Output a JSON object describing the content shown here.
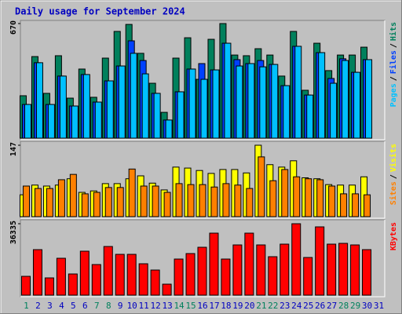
{
  "chart_data": [
    {
      "type": "bar",
      "title": "Daily usage for September 2024",
      "ylim": [
        0,
        670
      ],
      "yticks": [
        670
      ],
      "legend_separator": "/",
      "series": [
        {
          "name": "Hits",
          "color": "#00805c",
          "values": [
            248,
            477,
            262,
            482,
            234,
            404,
            239,
            468,
            624,
            665,
            496,
            321,
            151,
            468,
            587,
            344,
            578,
            670,
            486,
            482,
            523,
            486,
            363,
            624,
            280,
            555,
            395,
            486,
            486,
            532,
            null
          ]
        },
        {
          "name": "Files",
          "color": "#0040ff",
          "values": [
            197,
            441,
            197,
            363,
            188,
            372,
            211,
            335,
            422,
            569,
            454,
            262,
            106,
            271,
            404,
            436,
            399,
            555,
            459,
            436,
            454,
            431,
            307,
            537,
            252,
            500,
            349,
            464,
            385,
            459,
            null
          ]
        },
        {
          "name": "Pages",
          "color": "#00c0ff",
          "values": [
            197,
            441,
            197,
            363,
            188,
            372,
            211,
            335,
            422,
            496,
            376,
            262,
            106,
            271,
            404,
            344,
            399,
            555,
            422,
            436,
            417,
            431,
            307,
            537,
            252,
            500,
            321,
            454,
            385,
            459,
            null
          ]
        }
      ]
    },
    {
      "type": "bar",
      "ylim": [
        0,
        147
      ],
      "yticks": [
        147
      ],
      "legend_separator": "/",
      "series": [
        {
          "name": "Visits",
          "color": "#ffff00",
          "values": [
            45,
            65,
            63,
            65,
            78,
            50,
            53,
            68,
            68,
            78,
            84,
            69,
            55,
            102,
            100,
            95,
            89,
            97,
            97,
            90,
            147,
            107,
            102,
            115,
            80,
            78,
            66,
            65,
            65,
            82,
            null
          ]
        },
        {
          "name": "Sites",
          "color": "#ff8000",
          "values": [
            63,
            58,
            58,
            76,
            87,
            47,
            50,
            60,
            60,
            98,
            63,
            63,
            50,
            68,
            66,
            66,
            61,
            68,
            65,
            58,
            123,
            74,
            97,
            82,
            78,
            76,
            63,
            47,
            47,
            45,
            null
          ]
        }
      ]
    },
    {
      "type": "bar",
      "ylim": [
        0,
        36335
      ],
      "yticks": [
        36335
      ],
      "categories": [
        "1",
        "2",
        "3",
        "4",
        "5",
        "6",
        "7",
        "8",
        "9",
        "10",
        "11",
        "12",
        "13",
        "14",
        "15",
        "16",
        "17",
        "18",
        "19",
        "20",
        "21",
        "22",
        "23",
        "24",
        "25",
        "26",
        "27",
        "28",
        "29",
        "30",
        "31"
      ],
      "category_colors": [
        "#00805c",
        "#0000c0",
        "#0000c0",
        "#0000c0",
        "#0000c0",
        "#0000c0",
        "#00805c",
        "#00805c",
        "#0000c0",
        "#0000c0",
        "#0000c0",
        "#0000c0",
        "#0000c0",
        "#00805c",
        "#00805c",
        "#0000c0",
        "#0000c0",
        "#0000c0",
        "#0000c0",
        "#0000c0",
        "#00805c",
        "#00805c",
        "#0000c0",
        "#0000c0",
        "#0000c0",
        "#0000c0",
        "#0000c0",
        "#00805c",
        "#00805c",
        "#0000c0",
        "#0000c0"
      ],
      "series": [
        {
          "name": "KBytes",
          "color": "#ff0000",
          "values": [
            9583,
            23158,
            8784,
            18766,
            10780,
            22360,
            15572,
            24755,
            20762,
            20762,
            15971,
            12776,
            5590,
            18367,
            21161,
            24356,
            31544,
            18367,
            25554,
            31544,
            25554,
            19565,
            25953,
            36335,
            19166,
            34737,
            25953,
            26352,
            25554,
            23158,
            null
          ]
        }
      ]
    }
  ]
}
